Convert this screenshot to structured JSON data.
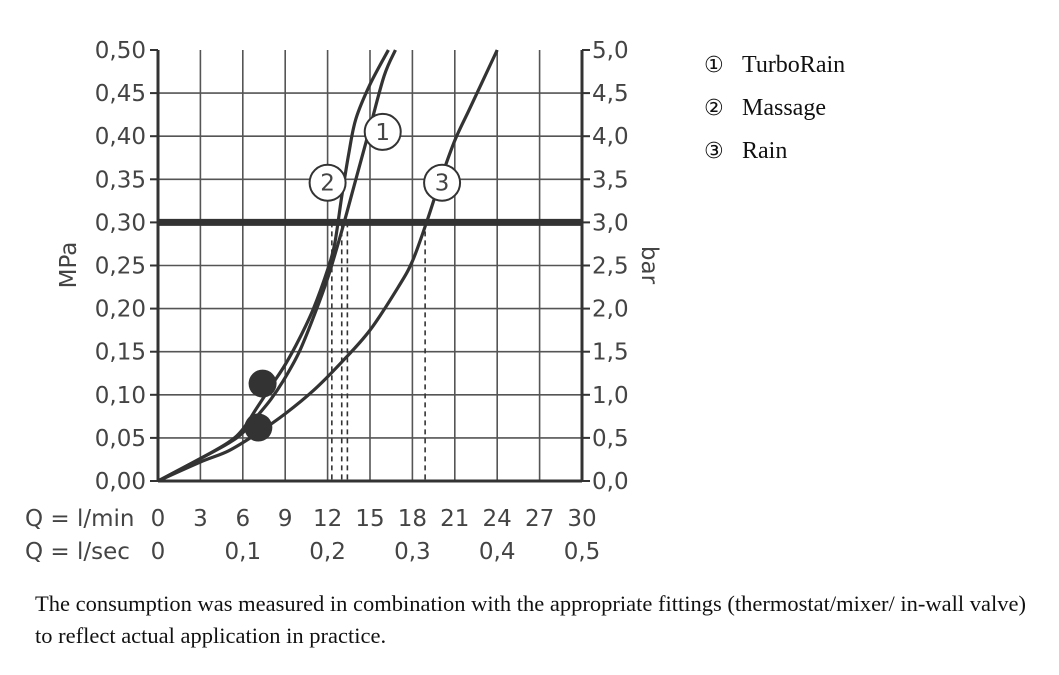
{
  "chart_data": {
    "type": "line",
    "x": {
      "label": "Q = l/min",
      "range": [
        0,
        30
      ],
      "ticks": [
        "0",
        "3",
        "6",
        "9",
        "12",
        "15",
        "18",
        "21",
        "24",
        "27",
        "30"
      ]
    },
    "x2": {
      "label": "Q = l/sec",
      "ticks": [
        {
          "value": 0,
          "text": "0"
        },
        {
          "value": 0.1,
          "text": "0,1"
        },
        {
          "value": 0.2,
          "text": "0,2"
        },
        {
          "value": 0.3,
          "text": "0,3"
        },
        {
          "value": 0.4,
          "text": "0,4"
        },
        {
          "value": 0.5,
          "text": "0,5"
        }
      ]
    },
    "y_left": {
      "label": "MPa",
      "range": [
        0,
        0.5
      ],
      "ticks": [
        "0,00",
        "0,05",
        "0,10",
        "0,15",
        "0,20",
        "0,25",
        "0,30",
        "0,35",
        "0,40",
        "0,45",
        "0,50"
      ]
    },
    "y_right": {
      "label": "bar",
      "ticks": [
        "0,0",
        "0,5",
        "1,0",
        "1,5",
        "2,0",
        "2,5",
        "3,0",
        "3,5",
        "4,0",
        "4,5",
        "5,0"
      ]
    },
    "grid": true,
    "reference_line": {
      "pressure_mpa": 0.3
    },
    "series": [
      {
        "name": "TurboRain",
        "marker": "1",
        "points": [
          [
            0,
            0
          ],
          [
            3,
            0.026
          ],
          [
            5,
            0.044
          ],
          [
            6,
            0.056
          ],
          [
            7,
            0.075
          ],
          [
            8,
            0.095
          ],
          [
            9,
            0.12
          ],
          [
            10,
            0.15
          ],
          [
            11,
            0.19
          ],
          [
            12,
            0.235
          ],
          [
            13,
            0.29
          ],
          [
            14,
            0.35
          ],
          [
            15,
            0.41
          ],
          [
            16,
            0.47
          ],
          [
            16.8,
            0.5
          ]
        ],
        "flow_at_reference": 13.4,
        "label_at": [
          15.9,
          0.405
        ]
      },
      {
        "name": "Massage",
        "marker": "2",
        "points": [
          [
            0,
            0
          ],
          [
            3,
            0.026
          ],
          [
            5,
            0.045
          ],
          [
            6,
            0.06
          ],
          [
            7,
            0.085
          ],
          [
            8,
            0.11
          ],
          [
            9,
            0.135
          ],
          [
            10,
            0.165
          ],
          [
            11,
            0.2
          ],
          [
            12,
            0.245
          ],
          [
            12.5,
            0.275
          ],
          [
            13,
            0.33
          ],
          [
            13.5,
            0.38
          ],
          [
            14,
            0.42
          ],
          [
            15,
            0.46
          ],
          [
            16.3,
            0.5
          ]
        ],
        "flow_at_reference": 12.9,
        "label_at": [
          12.0,
          0.346
        ],
        "dot_at": [
          7.4,
          0.113
        ]
      },
      {
        "name": "Rain",
        "marker": "3",
        "points": [
          [
            0,
            0
          ],
          [
            3,
            0.022
          ],
          [
            5,
            0.035
          ],
          [
            7,
            0.055
          ],
          [
            9,
            0.078
          ],
          [
            11,
            0.105
          ],
          [
            13,
            0.138
          ],
          [
            15,
            0.175
          ],
          [
            17,
            0.225
          ],
          [
            18,
            0.255
          ],
          [
            19,
            0.3
          ],
          [
            20,
            0.35
          ],
          [
            21,
            0.395
          ],
          [
            22,
            0.43
          ],
          [
            23,
            0.465
          ],
          [
            24,
            0.5
          ]
        ],
        "flow_at_reference": 18.9,
        "label_at": [
          20.1,
          0.346
        ],
        "dot_at": [
          7.1,
          0.062
        ]
      }
    ],
    "reference_marks_lpm": [
      12.3,
      13.0,
      13.4,
      18.9
    ]
  },
  "legend": [
    {
      "marker": "①",
      "label": "TurboRain"
    },
    {
      "marker": "②",
      "label": "Massage"
    },
    {
      "marker": "③",
      "label": "Rain"
    }
  ],
  "note": "The consumption was measured in combination with the appropriate fittings (thermostat/mixer/ in-wall valve) to reflect actual application in practice."
}
